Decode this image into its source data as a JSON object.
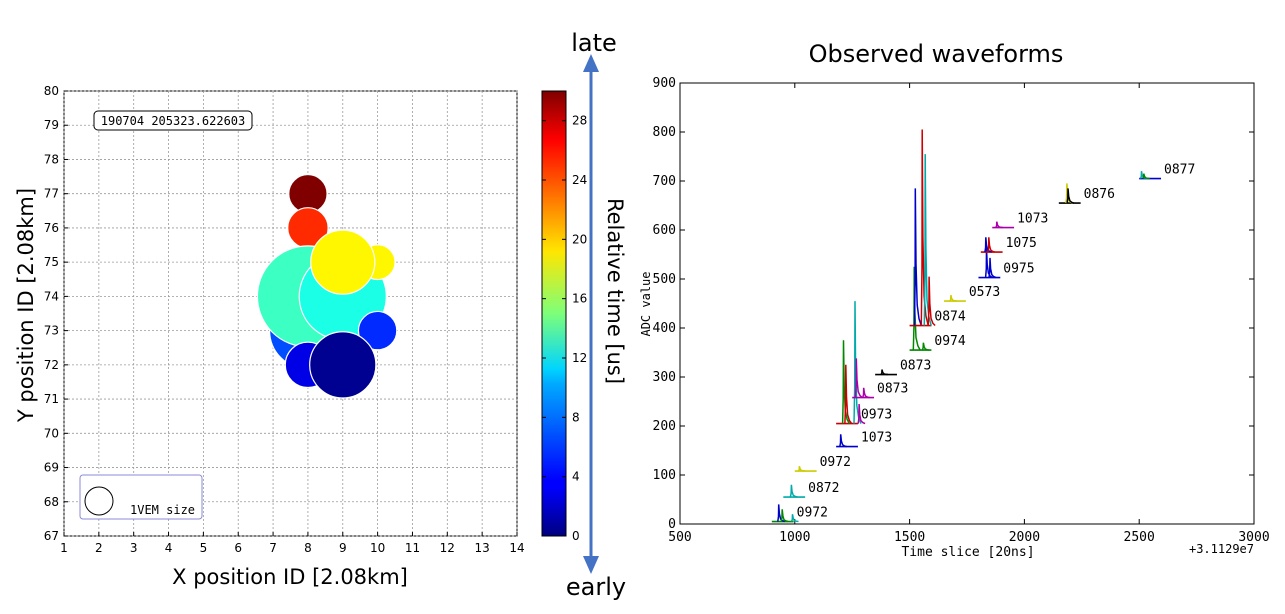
{
  "chart_data": [
    {
      "type": "scatter",
      "title": "",
      "xlabel": "X position ID [2.08km]",
      "ylabel": "Y position ID [2.08km]",
      "xlim": [
        1,
        14
      ],
      "ylim": [
        67,
        80
      ],
      "xticks": [
        "1",
        "2",
        "3",
        "4",
        "5",
        "6",
        "7",
        "8",
        "9",
        "10",
        "11",
        "12",
        "13",
        "14"
      ],
      "yticks": [
        "67",
        "68",
        "69",
        "70",
        "71",
        "72",
        "73",
        "74",
        "75",
        "76",
        "77",
        "78",
        "79",
        "80"
      ],
      "grid": true,
      "event_label": "190704 205323.622603",
      "legend": {
        "label": "1VEM size",
        "placement": "bottom-left"
      },
      "points": [
        {
          "x": 8,
          "y": 77,
          "radius_rel": 0.55,
          "time_us": 30
        },
        {
          "x": 8,
          "y": 76,
          "radius_rel": 0.58,
          "time_us": 25
        },
        {
          "x": 8,
          "y": 73,
          "radius_rel": 1.1,
          "time_us": 6
        },
        {
          "x": 8,
          "y": 74,
          "radius_rel": 1.45,
          "time_us": 13
        },
        {
          "x": 9,
          "y": 74,
          "radius_rel": 1.25,
          "time_us": 12
        },
        {
          "x": 10,
          "y": 75,
          "radius_rel": 0.5,
          "time_us": 19
        },
        {
          "x": 9,
          "y": 75,
          "radius_rel": 0.92,
          "time_us": 19
        },
        {
          "x": 10,
          "y": 73,
          "radius_rel": 0.55,
          "time_us": 5
        },
        {
          "x": 8,
          "y": 72,
          "radius_rel": 0.65,
          "time_us": 3
        },
        {
          "x": 9,
          "y": 72,
          "radius_rel": 0.95,
          "time_us": 0.5
        }
      ],
      "colorbar": {
        "label": "Relative time [us]",
        "ticks": [
          "0",
          "4",
          "8",
          "12",
          "16",
          "20",
          "24",
          "28"
        ],
        "range": [
          0,
          30
        ],
        "top_label": "late",
        "bottom_label": "early",
        "arrow_color": "#4472c4"
      }
    },
    {
      "type": "line",
      "title": "Observed waveforms",
      "xlabel": "Time slice [20ns]",
      "ylabel": "ADC value",
      "xlim": [
        500,
        3000
      ],
      "ylim": [
        0,
        900
      ],
      "xticks": [
        "500",
        "1000",
        "1500",
        "2000",
        "2500",
        "3000"
      ],
      "yticks": [
        "0",
        "100",
        "200",
        "300",
        "400",
        "500",
        "600",
        "700",
        "800",
        "900"
      ],
      "offset_text": "+3.1129e7",
      "series": [
        {
          "label": "0972",
          "x0": 900,
          "baseline": 5,
          "peaks": [
            [
              930,
              35,
              "#0000cc"
            ],
            [
              945,
              25,
              "#008800"
            ],
            [
              990,
              15,
              "#00aaaa"
            ]
          ],
          "color": "#008800"
        },
        {
          "label": "0872",
          "x0": 950,
          "baseline": 55,
          "peaks": [
            [
              985,
              25,
              "#00aaaa"
            ]
          ],
          "color": "#00aaaa"
        },
        {
          "label": "0972",
          "x0": 1000,
          "baseline": 108,
          "peaks": [
            [
              1020,
              10,
              "#cccc00"
            ]
          ],
          "color": "#cccc00"
        },
        {
          "label": "1073",
          "x0": 1180,
          "baseline": 158,
          "peaks": [
            [
              1200,
              25,
              "#0000cc"
            ]
          ],
          "color": "#0000cc"
        },
        {
          "label": "0973",
          "x0": 1180,
          "baseline": 205,
          "peaks": [
            [
              1212,
              170,
              "#008800"
            ],
            [
              1222,
              120,
              "#cc0000"
            ],
            [
              1262,
              250,
              "#00aaaa"
            ],
            [
              1280,
              40,
              "#aa00aa"
            ]
          ],
          "color": "#cc0000"
        },
        {
          "label": "0873",
          "x0": 1250,
          "baseline": 258,
          "peaks": [
            [
              1268,
              80,
              "#aa00aa"
            ],
            [
              1300,
              20,
              "#aa00aa"
            ]
          ],
          "color": "#aa00aa"
        },
        {
          "label": "0873",
          "x0": 1350,
          "baseline": 305,
          "peaks": [
            [
              1380,
              10,
              "#000000"
            ]
          ],
          "color": "#000000"
        },
        {
          "label": "0974",
          "x0": 1500,
          "baseline": 355,
          "peaks": [
            [
              1520,
              170,
              "#008800"
            ],
            [
              1560,
              15,
              "#008800"
            ]
          ],
          "color": "#008800"
        },
        {
          "label": "0874",
          "x0": 1500,
          "baseline": 405,
          "peaks": [
            [
              1525,
              280,
              "#0000cc"
            ],
            [
              1555,
              400,
              "#cc0000"
            ],
            [
              1568,
              350,
              "#00aaaa"
            ],
            [
              1585,
              100,
              "#cc0000"
            ]
          ],
          "color": "#cc0000"
        },
        {
          "label": "0573",
          "x0": 1650,
          "baseline": 455,
          "peaks": [
            [
              1680,
              12,
              "#cccc00"
            ]
          ],
          "color": "#cccc00"
        },
        {
          "label": "0975",
          "x0": 1800,
          "baseline": 503,
          "peaks": [
            [
              1835,
              60,
              "#0000cc"
            ],
            [
              1850,
              40,
              "#0000cc"
            ]
          ],
          "color": "#0000cc"
        },
        {
          "label": "1075",
          "x0": 1810,
          "baseline": 555,
          "peaks": [
            [
              1832,
              30,
              "#0000cc"
            ],
            [
              1845,
              30,
              "#cc0000"
            ]
          ],
          "color": "#cc0000"
        },
        {
          "label": "1073",
          "x0": 1860,
          "baseline": 605,
          "peaks": [
            [
              1880,
              12,
              "#aa00aa"
            ]
          ],
          "color": "#aa00aa"
        },
        {
          "label": "0876",
          "x0": 2150,
          "baseline": 655,
          "peaks": [
            [
              2185,
              40,
              "#cccc00"
            ],
            [
              2190,
              30,
              "#000000"
            ]
          ],
          "color": "#000000"
        },
        {
          "label": "0877",
          "x0": 2500,
          "baseline": 705,
          "peaks": [
            [
              2510,
              15,
              "#00aaaa"
            ],
            [
              2520,
              10,
              "#008800"
            ]
          ],
          "color": "#0000cc"
        }
      ]
    }
  ]
}
